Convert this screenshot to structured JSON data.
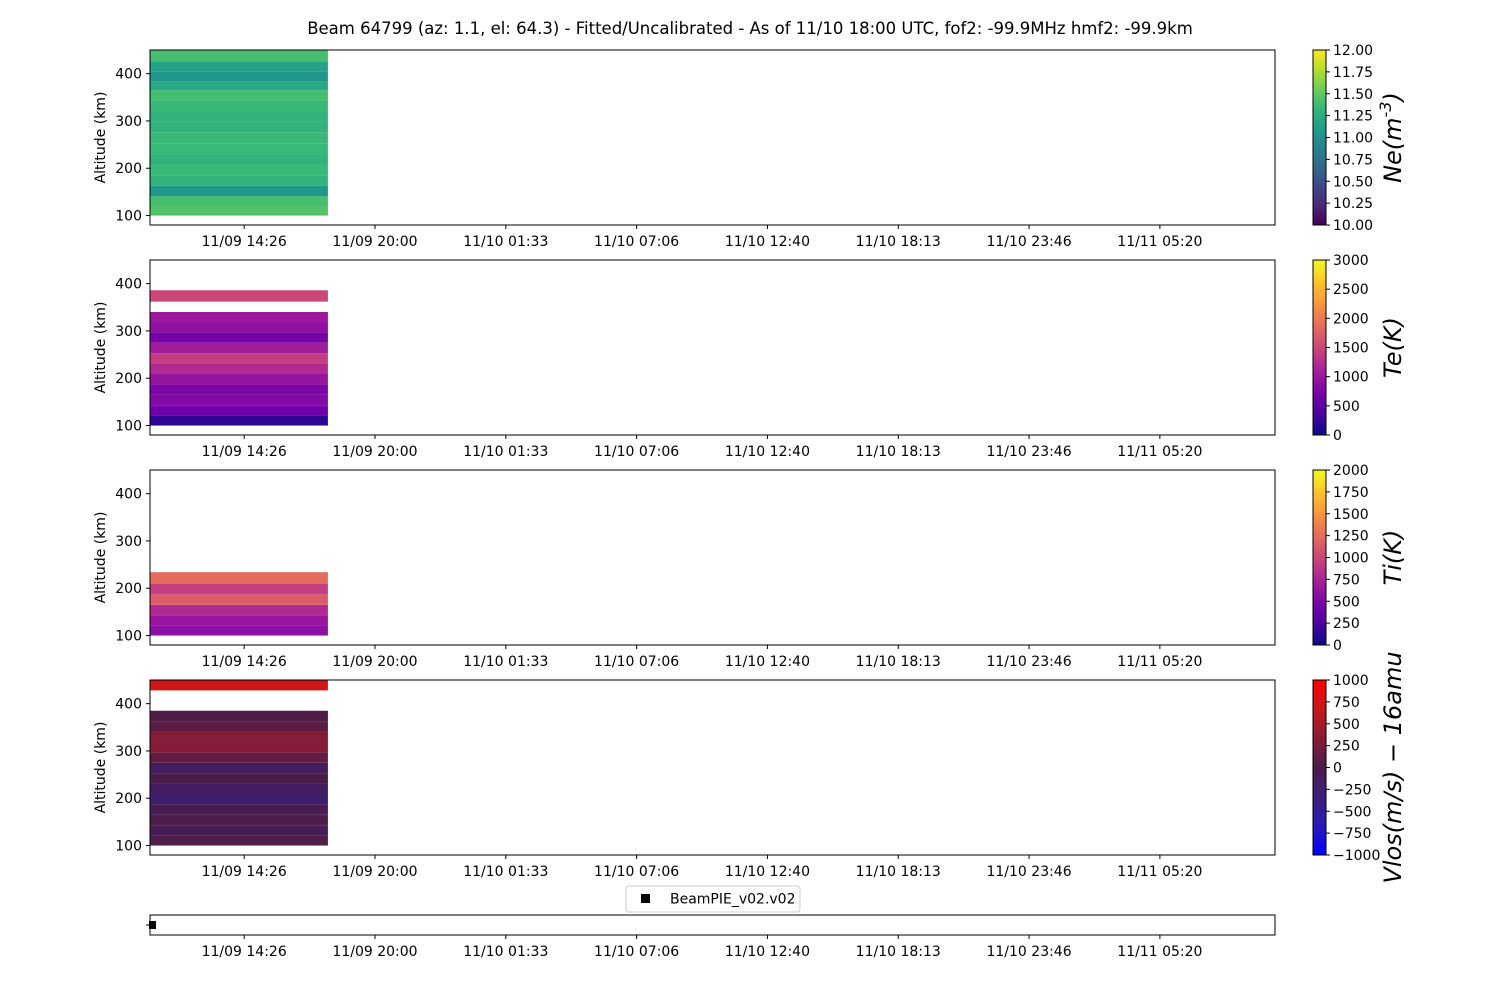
{
  "title": "Beam 64799 (az: 1.1, el: 64.3) - Fitted/Uncalibrated - As of 11/10 18:00 UTC, fof2: -99.9MHz  hmf2: -99.9km",
  "xticks": [
    "11/09 14:26",
    "11/09 20:00",
    "11/10 01:33",
    "11/10 07:06",
    "11/10 12:40",
    "11/10 18:13",
    "11/10 23:46",
    "11/11 05:20"
  ],
  "legend": {
    "label": "BeamPIE_v02.v02"
  },
  "chart_data": [
    {
      "type": "heatmap",
      "id": "ne",
      "ylabel": "Altitude (km)",
      "yticks": [
        100,
        200,
        300,
        400
      ],
      "ylim": [
        80,
        450
      ],
      "xlim": [
        0,
        8.6
      ],
      "data_x": [
        0,
        1.36
      ],
      "colorbar": {
        "label": "Ne(m^-3)",
        "cmap": "viridis",
        "min": 10.0,
        "max": 12.0,
        "ticks": [
          "10.00",
          "10.25",
          "10.50",
          "10.75",
          "11.00",
          "11.25",
          "11.50",
          "11.75",
          "12.00"
        ]
      },
      "rows": [
        {
          "y0": 100,
          "y1": 119,
          "value": 11.45
        },
        {
          "y0": 119,
          "y1": 141,
          "value": 11.4
        },
        {
          "y0": 141,
          "y1": 163,
          "value": 11.05
        },
        {
          "y0": 163,
          "y1": 185,
          "value": 11.3
        },
        {
          "y0": 185,
          "y1": 208,
          "value": 11.35
        },
        {
          "y0": 208,
          "y1": 230,
          "value": 11.3
        },
        {
          "y0": 230,
          "y1": 253,
          "value": 11.35
        },
        {
          "y0": 253,
          "y1": 276,
          "value": 11.35
        },
        {
          "y0": 276,
          "y1": 299,
          "value": 11.3
        },
        {
          "y0": 299,
          "y1": 321,
          "value": 11.3
        },
        {
          "y0": 321,
          "y1": 343,
          "value": 11.35
        },
        {
          "y0": 343,
          "y1": 365,
          "value": 11.4
        },
        {
          "y0": 365,
          "y1": 383,
          "value": 11.2
        },
        {
          "y0": 383,
          "y1": 405,
          "value": 11.05
        },
        {
          "y0": 405,
          "y1": 426,
          "value": 11.15
        },
        {
          "y0": 426,
          "y1": 450,
          "value": 11.4
        }
      ]
    },
    {
      "type": "heatmap",
      "id": "te",
      "ylabel": "Altitude (km)",
      "yticks": [
        100,
        200,
        300,
        400
      ],
      "ylim": [
        80,
        450
      ],
      "xlim": [
        0,
        8.6
      ],
      "data_x": [
        0,
        1.36
      ],
      "colorbar": {
        "label": "Te(K)",
        "cmap": "plasma",
        "min": 0,
        "max": 3000,
        "ticks": [
          "0",
          "500",
          "1000",
          "1500",
          "2000",
          "2500",
          "3000"
        ]
      },
      "rows": [
        {
          "y0": 100,
          "y1": 121,
          "value": 200
        },
        {
          "y0": 121,
          "y1": 143,
          "value": 650
        },
        {
          "y0": 143,
          "y1": 165,
          "value": 800
        },
        {
          "y0": 165,
          "y1": 187,
          "value": 750
        },
        {
          "y0": 187,
          "y1": 209,
          "value": 950
        },
        {
          "y0": 209,
          "y1": 231,
          "value": 1200
        },
        {
          "y0": 231,
          "y1": 253,
          "value": 1400
        },
        {
          "y0": 253,
          "y1": 275,
          "value": 1050
        },
        {
          "y0": 275,
          "y1": 297,
          "value": 700
        },
        {
          "y0": 297,
          "y1": 319,
          "value": 900
        },
        {
          "y0": 319,
          "y1": 340,
          "value": 1000
        },
        {
          "y0": 340,
          "y1": 362,
          "value": null
        },
        {
          "y0": 362,
          "y1": 386,
          "value": 1500
        }
      ]
    },
    {
      "type": "heatmap",
      "id": "ti",
      "ylabel": "Altitude (km)",
      "yticks": [
        100,
        200,
        300,
        400
      ],
      "ylim": [
        80,
        450
      ],
      "xlim": [
        0,
        8.6
      ],
      "data_x": [
        0,
        1.36
      ],
      "colorbar": {
        "label": "Ti(K)",
        "cmap": "plasma",
        "min": 0,
        "max": 2000,
        "ticks": [
          "0",
          "250",
          "500",
          "750",
          "1000",
          "1250",
          "1500",
          "1750",
          "2000"
        ]
      },
      "rows": [
        {
          "y0": 100,
          "y1": 121,
          "value": 580
        },
        {
          "y0": 121,
          "y1": 143,
          "value": 650
        },
        {
          "y0": 143,
          "y1": 165,
          "value": 800
        },
        {
          "y0": 165,
          "y1": 187,
          "value": 1150
        },
        {
          "y0": 187,
          "y1": 209,
          "value": 950
        },
        {
          "y0": 209,
          "y1": 234,
          "value": 1250
        }
      ]
    },
    {
      "type": "heatmap",
      "id": "vlos",
      "ylabel": "Altitude (km)",
      "yticks": [
        100,
        200,
        300,
        400
      ],
      "ylim": [
        80,
        450
      ],
      "xlim": [
        0,
        8.6
      ],
      "data_x": [
        0,
        1.36
      ],
      "colorbar": {
        "label": "Vlos(m/s) − 16amu",
        "cmap": "bwr_dark",
        "min": -1000,
        "max": 1000,
        "ticks": [
          "−1000",
          "−750",
          "−500",
          "−250",
          "0",
          "250",
          "500",
          "750",
          "1000"
        ]
      },
      "rows": [
        {
          "y0": 100,
          "y1": 121,
          "value": 30
        },
        {
          "y0": 121,
          "y1": 143,
          "value": -80
        },
        {
          "y0": 143,
          "y1": 165,
          "value": 20
        },
        {
          "y0": 165,
          "y1": 187,
          "value": -60
        },
        {
          "y0": 187,
          "y1": 209,
          "value": -250
        },
        {
          "y0": 209,
          "y1": 231,
          "value": -150
        },
        {
          "y0": 231,
          "y1": 253,
          "value": 10
        },
        {
          "y0": 253,
          "y1": 275,
          "value": -130
        },
        {
          "y0": 275,
          "y1": 297,
          "value": 120
        },
        {
          "y0": 297,
          "y1": 319,
          "value": 310
        },
        {
          "y0": 319,
          "y1": 341,
          "value": 290
        },
        {
          "y0": 341,
          "y1": 363,
          "value": 100
        },
        {
          "y0": 363,
          "y1": 385,
          "value": 30
        },
        {
          "y0": 385,
          "y1": 407,
          "value": null
        },
        {
          "y0": 407,
          "y1": 428,
          "value": null
        },
        {
          "y0": 428,
          "y1": 450,
          "value": 720
        }
      ]
    },
    {
      "type": "scatter",
      "id": "timeline",
      "points": [
        {
          "x": 0.0,
          "y": 0
        }
      ]
    }
  ]
}
